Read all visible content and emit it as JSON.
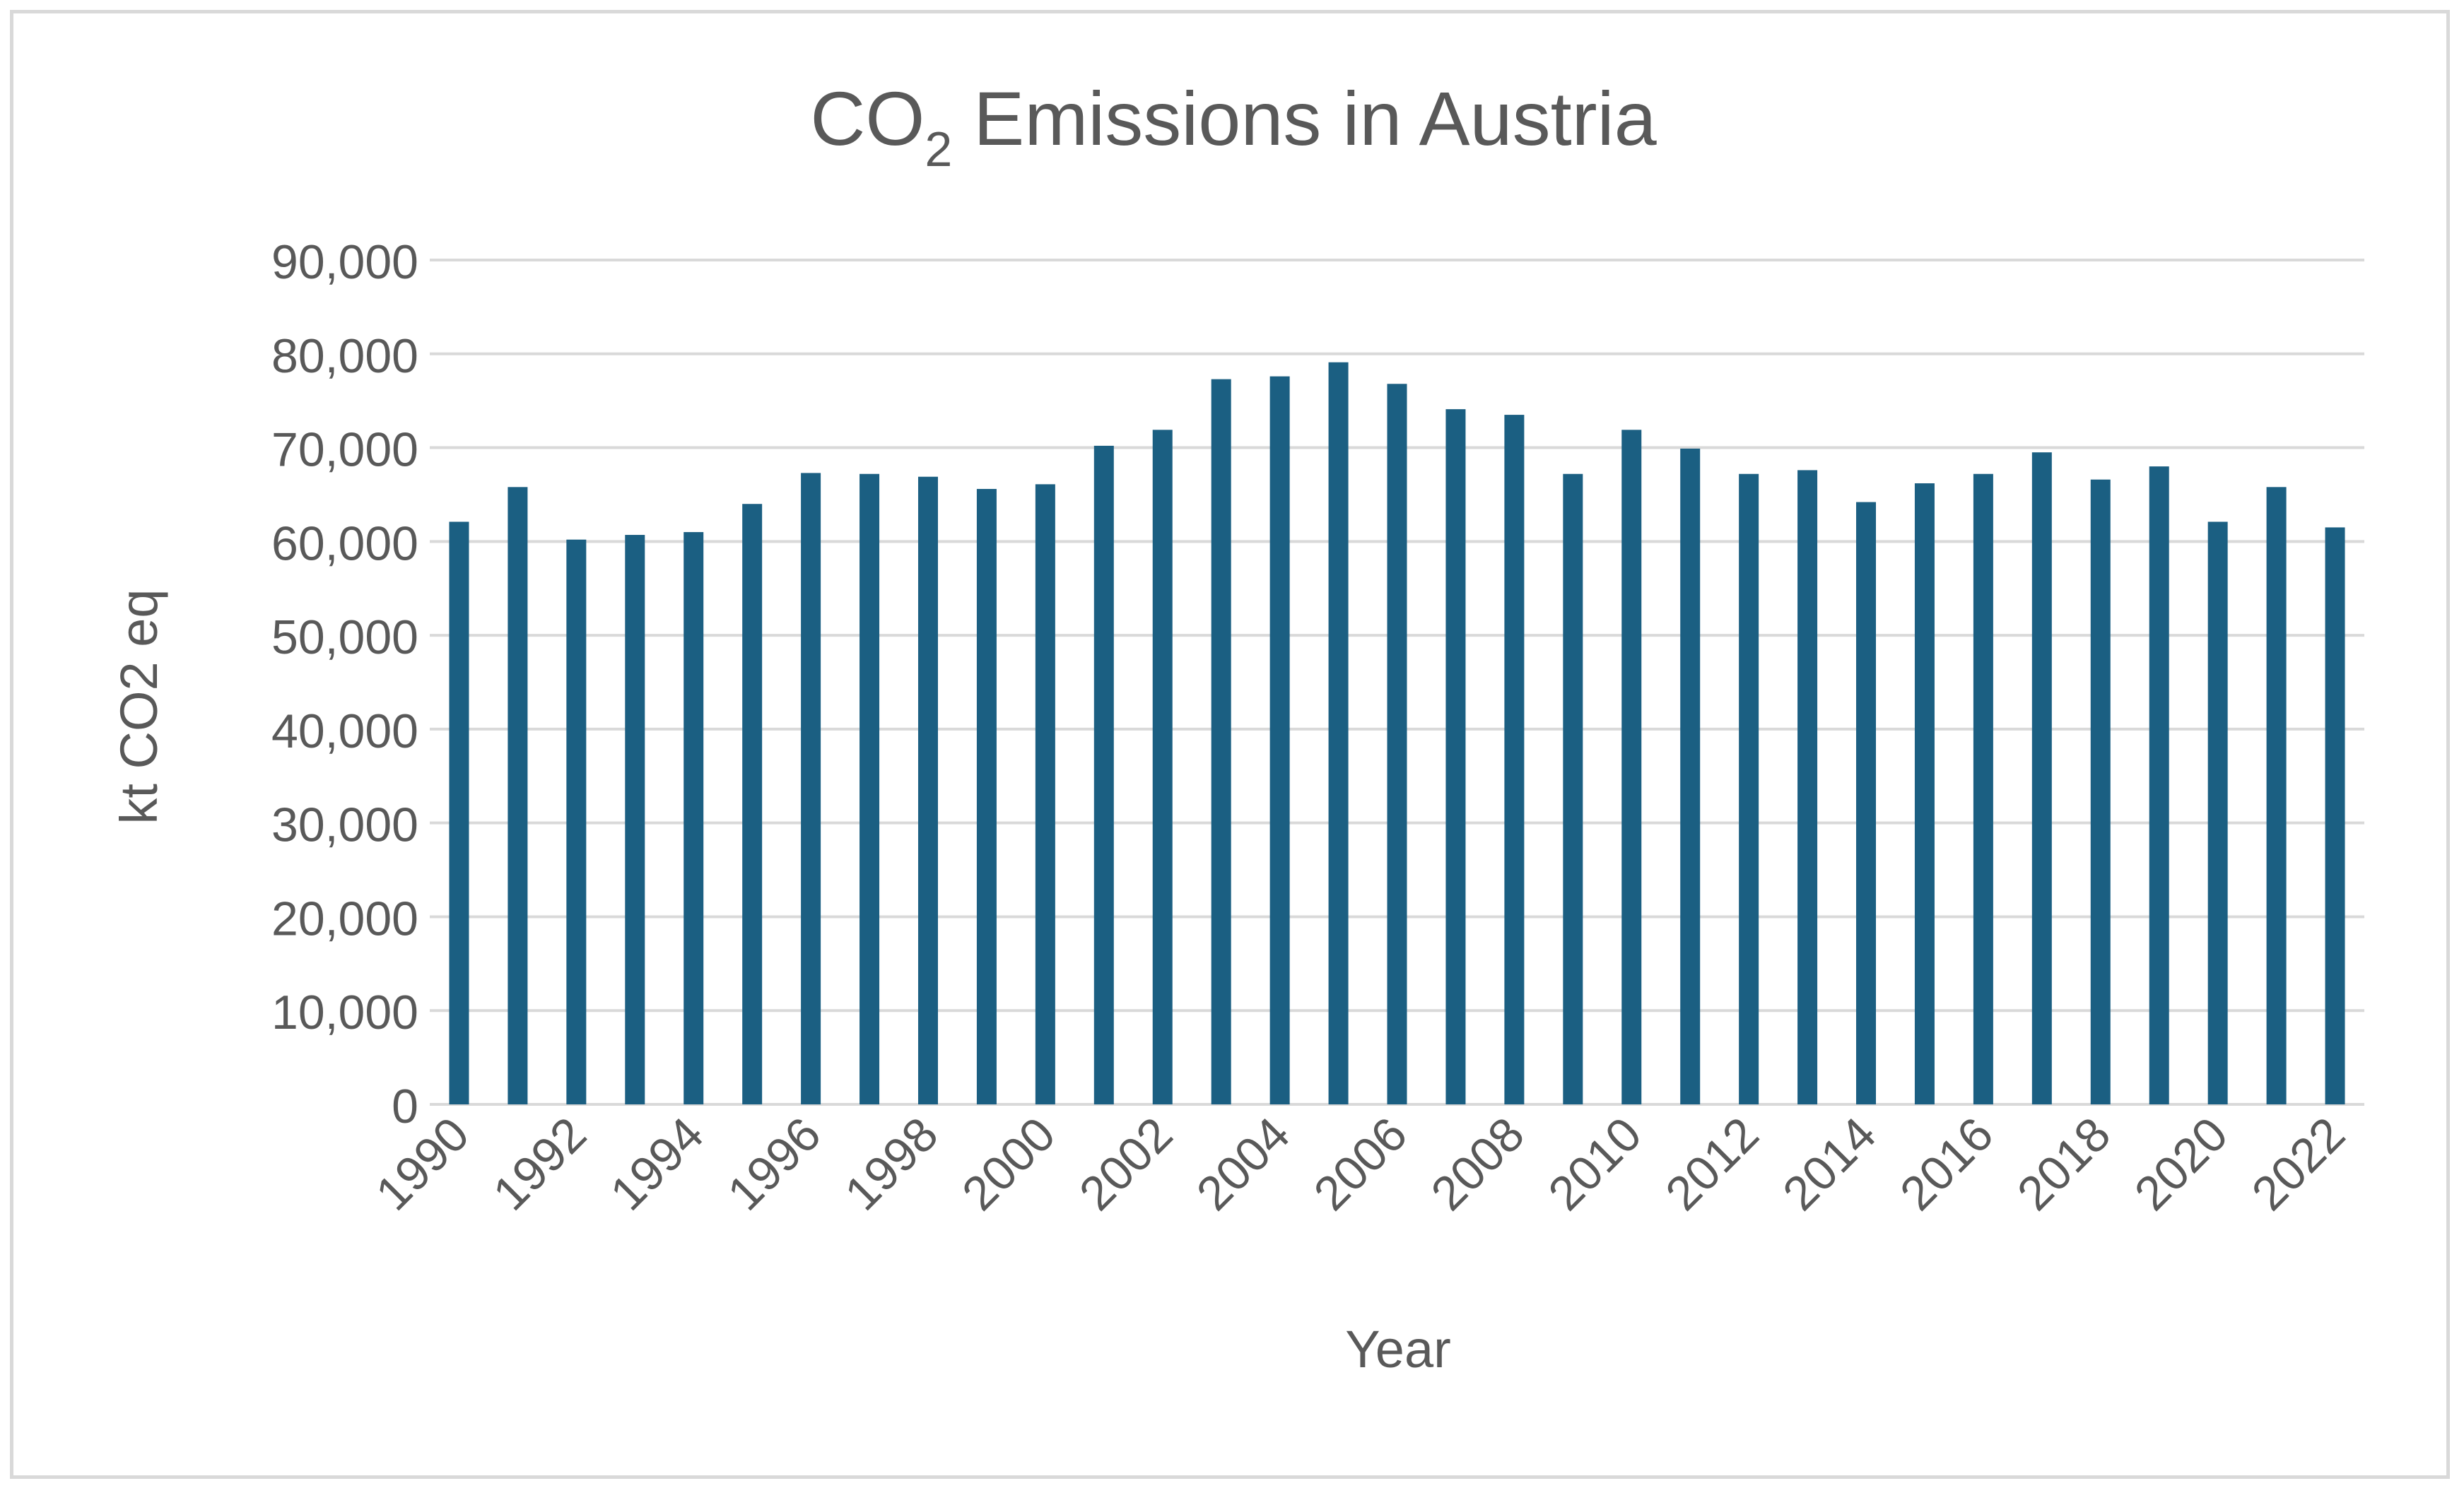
{
  "chart_data": {
    "type": "bar",
    "title_main": "CO",
    "title_subscript": "2",
    "title_rest": " Emissions in Austria",
    "xlabel": "Year",
    "ylabel": "kt CO2 eq",
    "ylim": [
      0,
      90000
    ],
    "ytick_step": 10000,
    "grid": true,
    "legend": "none",
    "colors": {
      "bar": "#1b5f82",
      "grid": "#d9d9d9",
      "text": "#595959",
      "frame": "#d9d9d9"
    },
    "ytick_labels": [
      "0",
      "10,000",
      "20,000",
      "30,000",
      "40,000",
      "50,000",
      "60,000",
      "70,000",
      "80,000",
      "90,000"
    ],
    "xtick_labels": [
      "1990",
      "1992",
      "1994",
      "1996",
      "1998",
      "2000",
      "2002",
      "2004",
      "2006",
      "2008",
      "2010",
      "2012",
      "2014",
      "2016",
      "2018",
      "2020",
      "2022"
    ],
    "categories": [
      "1990",
      "1991",
      "1992",
      "1993",
      "1994",
      "1995",
      "1996",
      "1997",
      "1998",
      "1999",
      "2000",
      "2001",
      "2002",
      "2003",
      "2004",
      "2005",
      "2006",
      "2007",
      "2008",
      "2009",
      "2010",
      "2011",
      "2012",
      "2013",
      "2014",
      "2015",
      "2016",
      "2017",
      "2018",
      "2019",
      "2020",
      "2021",
      "2022"
    ],
    "values": [
      62100,
      65800,
      60200,
      60700,
      61000,
      64000,
      67300,
      67200,
      66900,
      65600,
      66100,
      70200,
      71900,
      77300,
      77600,
      79100,
      76800,
      74100,
      73500,
      67200,
      71900,
      69900,
      67200,
      67600,
      64200,
      66200,
      67200,
      69500,
      66600,
      68000,
      62100,
      65800,
      61500
    ]
  }
}
